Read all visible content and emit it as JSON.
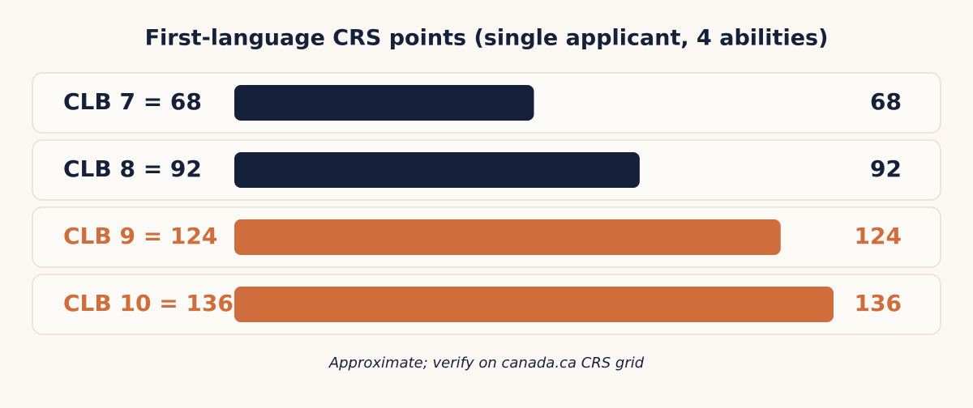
{
  "chart_data": {
    "type": "bar",
    "orientation": "horizontal",
    "title": "First-language CRS points (single applicant, 4 abilities)",
    "categories": [
      "CLB 7 = 68",
      "CLB 8 = 92",
      "CLB 9 = 124",
      "CLB 10 = 136"
    ],
    "values": [
      68,
      92,
      124,
      136
    ],
    "colors": [
      "#15213a",
      "#15213a",
      "#cf6d3c",
      "#cf6d3c"
    ],
    "note": "Approximate; verify on canada.ca CRS grid"
  }
}
